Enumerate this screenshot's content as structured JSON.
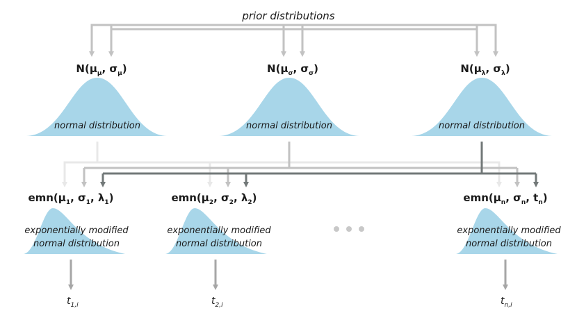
{
  "title": "prior distributions",
  "colors": {
    "curve": "#a8d6e9",
    "arrow_light": "#e8e8e8",
    "arrow_mid": "#c2c2c2",
    "arrow_gray": "#a6a6a6",
    "arrow_dark": "#727878",
    "dots": "#c8c8c8"
  },
  "priors": [
    {
      "fn": "N(",
      "p1": "μ",
      "p1_sub": "μ",
      "sep": ", ",
      "p2": "σ",
      "p2_sub": "μ",
      "close": ")",
      "curve_label": "normal distribution"
    },
    {
      "fn": "N(",
      "p1": "μ",
      "p1_sub": "σ",
      "sep": ", ",
      "p2": "σ",
      "p2_sub": "σ",
      "close": ")",
      "curve_label": "normal distribution"
    },
    {
      "fn": "N(",
      "p1": "μ",
      "p1_sub": "λ",
      "sep": ", ",
      "p2": "σ",
      "p2_sub": "λ",
      "close": ")",
      "curve_label": "normal distribution"
    }
  ],
  "emns": [
    {
      "fn": "emn(",
      "a": "μ",
      "a_sub": "1",
      "b": "σ",
      "b_sub": "1",
      "c": "λ",
      "c_sub": "1",
      "close": ")",
      "label_line1": "exponentially modified",
      "label_line2": "normal distribution",
      "t": "t",
      "t_sub": "1,i"
    },
    {
      "fn": "emn(",
      "a": "μ",
      "a_sub": "2",
      "b": "σ",
      "b_sub": "2",
      "c": "λ",
      "c_sub": "2",
      "close": ")",
      "label_line1": "exponentially modified",
      "label_line2": "normal distribution",
      "t": "t",
      "t_sub": "2,i"
    },
    {
      "fn": "emn(",
      "a": "μ",
      "a_sub": "n",
      "b": "σ",
      "b_sub": "n",
      "c": "t",
      "c_sub": "n",
      "close": ")",
      "label_line1": "exponentially modified",
      "label_line2": "normal distribution",
      "t": "t",
      "t_sub": "n,i"
    }
  ]
}
